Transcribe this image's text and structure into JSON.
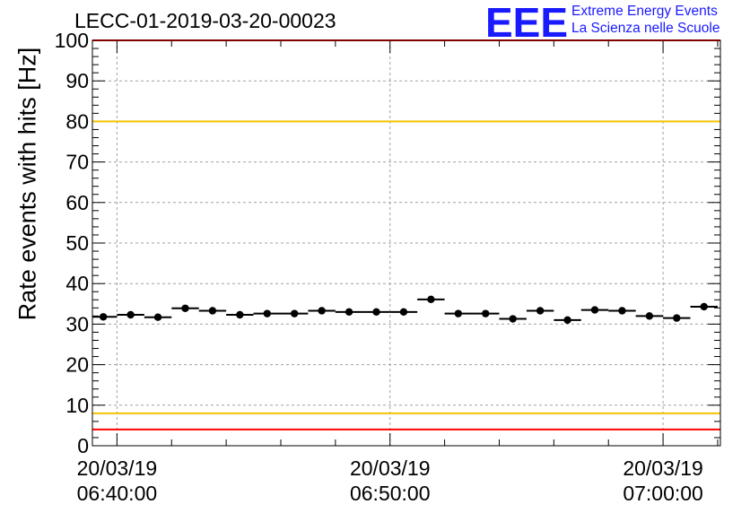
{
  "chart_data": {
    "type": "scatter",
    "title": "LECC-01-2019-03-20-00023",
    "xlabel": "",
    "ylabel": "Rate events with hits [Hz]",
    "ylim": [
      0,
      100
    ],
    "y_ticks": [
      0,
      10,
      20,
      30,
      40,
      50,
      60,
      70,
      80,
      90,
      100
    ],
    "x_unit": "minutes since 20/03/19 06:40:00",
    "xlim": [
      -0.9,
      22.1
    ],
    "x_ticks": [
      {
        "x": 0,
        "date": "20/03/19",
        "time": "06:40:00"
      },
      {
        "x": 10,
        "date": "20/03/19",
        "time": "06:50:00"
      },
      {
        "x": 20,
        "date": "20/03/19",
        "time": "07:00:00"
      }
    ],
    "bin_width_min": 1,
    "x": [
      -0.5,
      0.5,
      1.5,
      2.5,
      3.5,
      4.5,
      5.5,
      6.5,
      7.5,
      8.5,
      9.5,
      10.5,
      11.5,
      12.5,
      13.5,
      14.5,
      15.5,
      16.5,
      17.5,
      18.5,
      19.5,
      20.5,
      21.5
    ],
    "values": [
      31.8,
      32.3,
      31.7,
      33.9,
      33.3,
      32.3,
      32.6,
      32.6,
      33.3,
      33.0,
      33.0,
      33.0,
      36.1,
      32.6,
      32.6,
      31.3,
      33.3,
      31.0,
      33.5,
      33.3,
      32.0,
      31.5,
      34.3
    ],
    "reference_lines": [
      {
        "y": 100,
        "color": "#ff0000"
      },
      {
        "y": 80,
        "color": "#f2c300"
      },
      {
        "y": 8,
        "color": "#f2c300"
      },
      {
        "y": 4,
        "color": "#ff0000"
      }
    ],
    "grid": true,
    "marker_color": "#000000"
  },
  "logo": {
    "letters": "EEE",
    "line1": "Extreme Energy Events",
    "line2": "La Scienza nelle Scuole",
    "color": "#1a1aff"
  }
}
